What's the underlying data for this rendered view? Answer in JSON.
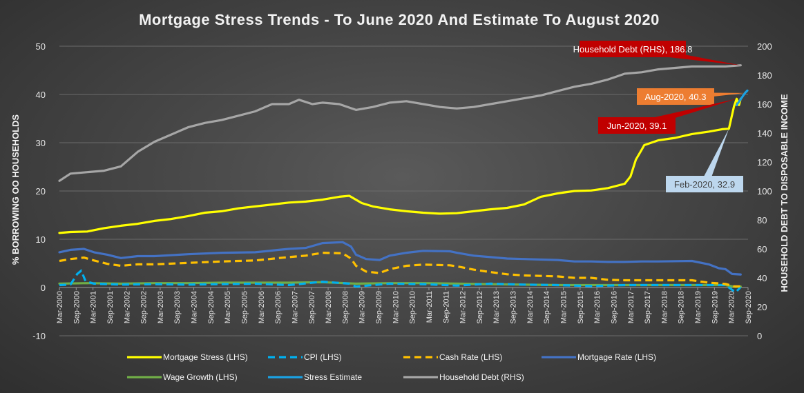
{
  "chart_data": {
    "type": "line",
    "title": "Mortgage Stress Trends - To June 2020 And Estimate To August 2020",
    "ylabel_left": "% BORROWING OO HOUSEHOLDS",
    "ylabel_right": "HOUSEHOLD DEBT TO DISPOSABLE INCOME",
    "ylim_left": [
      -10,
      50
    ],
    "ylim_right": [
      0,
      200
    ],
    "yticks_left": [
      "-10",
      "0",
      "10",
      "20",
      "30",
      "40",
      "50"
    ],
    "yticks_right": [
      "0",
      "20",
      "40",
      "60",
      "80",
      "100",
      "120",
      "140",
      "160",
      "180",
      "200"
    ],
    "x_labels": [
      "Mar-2000",
      "Sep-2000",
      "Mar-2001",
      "Sep-2001",
      "Mar-2002",
      "Sep-2002",
      "Mar-2003",
      "Sep-2003",
      "Mar-2004",
      "Sep-2004",
      "Mar-2005",
      "Sep-2005",
      "Mar-2006",
      "Sep-2006",
      "Mar-2007",
      "Sep-2007",
      "Mar-2008",
      "Sep-2008",
      "Mar-2009",
      "Sep-2009",
      "Mar-2010",
      "Sep-2010",
      "Mar-2011",
      "Sep-2011",
      "Mar-2012",
      "Sep-2012",
      "Mar-2013",
      "Sep-2013",
      "Mar-2014",
      "Sep-2014",
      "Mar-2015",
      "Sep-2015",
      "Mar-2016",
      "Sep-2016",
      "Mar-2017",
      "Sep-2017",
      "Mar-2018",
      "Sep-2018",
      "Mar-2019",
      "Sep-2019",
      "Mar-2020",
      "Sep-2020"
    ],
    "x_start": 2000.17,
    "x_end": 2020.67,
    "series": [
      {
        "name": "Mortgage Stress (LHS)",
        "color": "#ffff00",
        "axis": "left",
        "dash": "solid",
        "points": [
          [
            2000.17,
            11.3
          ],
          [
            2000.5,
            11.5
          ],
          [
            2001.0,
            11.6
          ],
          [
            2001.5,
            12.3
          ],
          [
            2002.0,
            12.8
          ],
          [
            2002.5,
            13.2
          ],
          [
            2003.0,
            13.8
          ],
          [
            2003.5,
            14.2
          ],
          [
            2004.0,
            14.8
          ],
          [
            2004.5,
            15.5
          ],
          [
            2005.0,
            15.8
          ],
          [
            2005.5,
            16.4
          ],
          [
            2006.0,
            16.8
          ],
          [
            2006.5,
            17.2
          ],
          [
            2007.0,
            17.6
          ],
          [
            2007.5,
            17.8
          ],
          [
            2008.0,
            18.2
          ],
          [
            2008.5,
            18.8
          ],
          [
            2008.8,
            19.0
          ],
          [
            2009.17,
            17.5
          ],
          [
            2009.5,
            16.8
          ],
          [
            2010.0,
            16.2
          ],
          [
            2010.5,
            15.8
          ],
          [
            2011.0,
            15.5
          ],
          [
            2011.5,
            15.3
          ],
          [
            2012.0,
            15.4
          ],
          [
            2012.5,
            15.8
          ],
          [
            2013.0,
            16.2
          ],
          [
            2013.5,
            16.5
          ],
          [
            2014.0,
            17.2
          ],
          [
            2014.5,
            18.8
          ],
          [
            2015.0,
            19.5
          ],
          [
            2015.5,
            20.0
          ],
          [
            2016.0,
            20.1
          ],
          [
            2016.5,
            20.6
          ],
          [
            2017.0,
            21.5
          ],
          [
            2017.17,
            23.0
          ],
          [
            2017.33,
            26.5
          ],
          [
            2017.5,
            28.5
          ],
          [
            2017.58,
            29.5
          ],
          [
            2018.0,
            30.5
          ],
          [
            2018.5,
            31.0
          ],
          [
            2019.0,
            31.8
          ],
          [
            2019.5,
            32.3
          ],
          [
            2019.9,
            32.8
          ],
          [
            2020.1,
            32.9
          ],
          [
            2020.25,
            37.5
          ],
          [
            2020.33,
            39.1
          ],
          [
            2020.4,
            37.8
          ],
          [
            2020.45,
            39.1
          ]
        ]
      },
      {
        "name": "CPI (LHS)",
        "color": "#00b0f0",
        "axis": "left",
        "dash": "dashed",
        "points": [
          [
            2000.17,
            0.5
          ],
          [
            2000.5,
            0.6
          ],
          [
            2000.7,
            2.8
          ],
          [
            2000.82,
            3.5
          ],
          [
            2000.95,
            1.3
          ],
          [
            2001.2,
            0.8
          ],
          [
            2002.0,
            0.6
          ],
          [
            2003.0,
            0.7
          ],
          [
            2004.0,
            0.6
          ],
          [
            2005.0,
            0.7
          ],
          [
            2006.0,
            0.8
          ],
          [
            2007.0,
            0.5
          ],
          [
            2008.0,
            1.2
          ],
          [
            2008.8,
            0.8
          ],
          [
            2009.0,
            0.2
          ],
          [
            2009.5,
            0.5
          ],
          [
            2010.0,
            0.8
          ],
          [
            2011.0,
            0.7
          ],
          [
            2012.0,
            0.4
          ],
          [
            2013.0,
            0.8
          ],
          [
            2014.0,
            0.6
          ],
          [
            2015.0,
            0.5
          ],
          [
            2016.0,
            0.3
          ],
          [
            2017.0,
            0.5
          ],
          [
            2018.0,
            0.5
          ],
          [
            2019.0,
            0.5
          ],
          [
            2020.0,
            0.5
          ],
          [
            2020.3,
            -1.0
          ],
          [
            2020.45,
            0.1
          ]
        ]
      },
      {
        "name": "Cash Rate (LHS)",
        "color": "#ffc000",
        "axis": "left",
        "dash": "dashed",
        "points": [
          [
            2000.17,
            5.5
          ],
          [
            2000.5,
            5.9
          ],
          [
            2000.9,
            6.2
          ],
          [
            2001.2,
            5.6
          ],
          [
            2001.6,
            4.9
          ],
          [
            2002.0,
            4.5
          ],
          [
            2002.5,
            4.8
          ],
          [
            2003.0,
            4.8
          ],
          [
            2004.0,
            5.1
          ],
          [
            2005.0,
            5.4
          ],
          [
            2006.0,
            5.6
          ],
          [
            2006.7,
            6.1
          ],
          [
            2007.0,
            6.3
          ],
          [
            2007.5,
            6.6
          ],
          [
            2008.0,
            7.2
          ],
          [
            2008.6,
            7.1
          ],
          [
            2008.85,
            6.0
          ],
          [
            2009.0,
            4.5
          ],
          [
            2009.3,
            3.3
          ],
          [
            2009.7,
            3.0
          ],
          [
            2010.0,
            3.8
          ],
          [
            2010.5,
            4.5
          ],
          [
            2011.0,
            4.75
          ],
          [
            2011.8,
            4.6
          ],
          [
            2012.0,
            4.4
          ],
          [
            2012.5,
            3.7
          ],
          [
            2013.0,
            3.2
          ],
          [
            2013.5,
            2.75
          ],
          [
            2014.0,
            2.5
          ],
          [
            2015.0,
            2.3
          ],
          [
            2015.5,
            2.0
          ],
          [
            2016.0,
            2.0
          ],
          [
            2016.5,
            1.6
          ],
          [
            2017.0,
            1.5
          ],
          [
            2018.0,
            1.5
          ],
          [
            2019.0,
            1.5
          ],
          [
            2019.5,
            1.0
          ],
          [
            2020.0,
            0.75
          ],
          [
            2020.25,
            0.25
          ],
          [
            2020.45,
            0.25
          ]
        ]
      },
      {
        "name": "Mortgage Rate (LHS)",
        "color": "#4472c4",
        "axis": "left",
        "dash": "solid",
        "points": [
          [
            2000.17,
            7.3
          ],
          [
            2000.5,
            7.8
          ],
          [
            2000.9,
            8.0
          ],
          [
            2001.2,
            7.3
          ],
          [
            2001.6,
            6.8
          ],
          [
            2002.0,
            6.1
          ],
          [
            2002.5,
            6.5
          ],
          [
            2003.0,
            6.5
          ],
          [
            2004.0,
            6.9
          ],
          [
            2005.0,
            7.2
          ],
          [
            2006.0,
            7.3
          ],
          [
            2006.7,
            7.8
          ],
          [
            2007.0,
            8.0
          ],
          [
            2007.5,
            8.2
          ],
          [
            2008.0,
            9.2
          ],
          [
            2008.6,
            9.4
          ],
          [
            2008.85,
            8.5
          ],
          [
            2009.0,
            6.8
          ],
          [
            2009.3,
            5.9
          ],
          [
            2009.7,
            5.7
          ],
          [
            2010.0,
            6.6
          ],
          [
            2010.5,
            7.2
          ],
          [
            2011.0,
            7.6
          ],
          [
            2011.8,
            7.5
          ],
          [
            2012.0,
            7.2
          ],
          [
            2012.5,
            6.6
          ],
          [
            2013.0,
            6.3
          ],
          [
            2013.5,
            6.0
          ],
          [
            2014.0,
            5.9
          ],
          [
            2015.0,
            5.7
          ],
          [
            2015.5,
            5.4
          ],
          [
            2016.0,
            5.4
          ],
          [
            2016.5,
            5.3
          ],
          [
            2017.0,
            5.3
          ],
          [
            2017.5,
            5.4
          ],
          [
            2018.0,
            5.4
          ],
          [
            2019.0,
            5.5
          ],
          [
            2019.5,
            4.8
          ],
          [
            2019.8,
            4.0
          ],
          [
            2020.0,
            3.8
          ],
          [
            2020.2,
            2.8
          ],
          [
            2020.45,
            2.7
          ]
        ]
      },
      {
        "name": "Wage Growth (LHS)",
        "color": "#70ad47",
        "axis": "left",
        "dash": "solid",
        "points": [
          [
            2000.17,
            0.8
          ],
          [
            2001.0,
            0.9
          ],
          [
            2002.0,
            0.8
          ],
          [
            2003.0,
            0.9
          ],
          [
            2004.0,
            0.9
          ],
          [
            2005.0,
            1.0
          ],
          [
            2006.0,
            1.0
          ],
          [
            2007.0,
            1.0
          ],
          [
            2008.0,
            1.1
          ],
          [
            2009.0,
            0.8
          ],
          [
            2010.0,
            0.9
          ],
          [
            2011.0,
            0.9
          ],
          [
            2012.0,
            0.8
          ],
          [
            2013.0,
            0.7
          ],
          [
            2014.0,
            0.6
          ],
          [
            2015.0,
            0.5
          ],
          [
            2016.0,
            0.5
          ],
          [
            2017.0,
            0.5
          ],
          [
            2018.0,
            0.5
          ],
          [
            2019.0,
            0.5
          ],
          [
            2020.0,
            0.5
          ],
          [
            2020.3,
            0.1
          ],
          [
            2020.45,
            0.2
          ]
        ]
      },
      {
        "name": "Stress Estimate",
        "color": "#1ba1e2",
        "axis": "left",
        "dash": "solid",
        "points": [
          [
            2020.33,
            37.8
          ],
          [
            2020.45,
            39.0
          ],
          [
            2020.58,
            40.3
          ],
          [
            2020.65,
            40.8
          ]
        ]
      },
      {
        "name": "Household Debt (RHS)",
        "color": "#a6a6a6",
        "axis": "right",
        "dash": "solid",
        "points": [
          [
            2000.17,
            107
          ],
          [
            2000.5,
            112
          ],
          [
            2001.0,
            113
          ],
          [
            2001.5,
            114
          ],
          [
            2002.0,
            117
          ],
          [
            2002.5,
            127
          ],
          [
            2003.0,
            134
          ],
          [
            2003.5,
            139
          ],
          [
            2004.0,
            144
          ],
          [
            2004.5,
            147
          ],
          [
            2005.0,
            149
          ],
          [
            2005.5,
            152
          ],
          [
            2006.0,
            155
          ],
          [
            2006.5,
            160
          ],
          [
            2007.0,
            160
          ],
          [
            2007.3,
            163
          ],
          [
            2007.7,
            160
          ],
          [
            2008.0,
            161
          ],
          [
            2008.5,
            160
          ],
          [
            2009.0,
            156
          ],
          [
            2009.5,
            158
          ],
          [
            2010.0,
            161
          ],
          [
            2010.5,
            162
          ],
          [
            2011.0,
            160
          ],
          [
            2011.5,
            158
          ],
          [
            2012.0,
            157
          ],
          [
            2012.5,
            158
          ],
          [
            2013.0,
            160
          ],
          [
            2013.5,
            162
          ],
          [
            2014.0,
            164
          ],
          [
            2014.5,
            166
          ],
          [
            2015.0,
            169
          ],
          [
            2015.5,
            172
          ],
          [
            2016.0,
            174
          ],
          [
            2016.5,
            177
          ],
          [
            2017.0,
            181
          ],
          [
            2017.5,
            182
          ],
          [
            2018.0,
            184
          ],
          [
            2018.5,
            185
          ],
          [
            2019.0,
            186
          ],
          [
            2019.5,
            186
          ],
          [
            2020.0,
            186
          ],
          [
            2020.45,
            186.8
          ]
        ]
      }
    ],
    "annotations": [
      {
        "text": "Household Debt (RHS), 186.8",
        "bg": "#c00000",
        "fg": "#ffffff",
        "x": 2020.45,
        "y": 186.8,
        "axis": "right"
      },
      {
        "text": "Aug-2020, 40.3",
        "bg": "#ed7d31",
        "fg": "#ffffff",
        "x": 2020.58,
        "y": 40.3,
        "axis": "left"
      },
      {
        "text": "Jun-2020, 39.1",
        "bg": "#c00000",
        "fg": "#ffffff",
        "x": 2020.33,
        "y": 39.1,
        "axis": "left"
      },
      {
        "text": "Feb-2020, 32.9",
        "bg": "#bdd7ee",
        "fg": "#404040",
        "x": 2020.1,
        "y": 32.9,
        "axis": "left"
      }
    ]
  }
}
